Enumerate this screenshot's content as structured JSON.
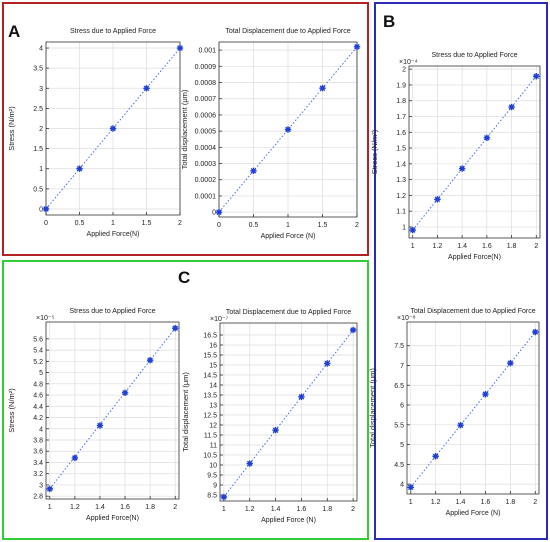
{
  "panels": [
    {
      "letter": "A",
      "color": "#b22222"
    },
    {
      "letter": "B",
      "color": "#2b2bb8"
    },
    {
      "letter": "C",
      "color": "#33cc33"
    }
  ],
  "style": {
    "marker_color": "#1f3fd6",
    "line_color": "#3f6fe0",
    "grid_color": "#dddddd"
  },
  "chart_data": [
    {
      "id": "a-stress",
      "type": "scatter",
      "title": "Stress due to Applied Force",
      "xlabel": "Applied Force(N)",
      "ylabel": "Stress (N/m²)",
      "multiplier": "",
      "xlim": [
        0,
        2
      ],
      "ylim": [
        -0.15,
        4.15
      ],
      "xticks": [
        "0",
        "0.5",
        "1",
        "1.5",
        "2"
      ],
      "xtick_values": [
        0,
        0.5,
        1,
        1.5,
        2
      ],
      "yticks": [
        "0",
        "0.5",
        "1",
        "1.5",
        "2",
        "2.5",
        "3",
        "3.5",
        "4"
      ],
      "ytick_values": [
        0,
        0.5,
        1,
        1.5,
        2,
        2.5,
        3,
        3.5,
        4
      ],
      "x": [
        0,
        0.5,
        1,
        1.5,
        2
      ],
      "y": [
        0,
        1,
        2,
        3,
        4
      ],
      "fit": "dotted"
    },
    {
      "id": "a-disp",
      "type": "scatter",
      "title": "Total Displacement due to Applied Force",
      "xlabel": "Applied Force (N)",
      "ylabel": "Total displacement (μm)",
      "multiplier": "",
      "xlim": [
        0,
        2
      ],
      "ylim": [
        -3e-05,
        0.00105
      ],
      "xticks": [
        "0",
        "0.5",
        "1",
        "1.5",
        "2"
      ],
      "xtick_values": [
        0,
        0.5,
        1,
        1.5,
        2
      ],
      "yticks": [
        "0",
        "0.0001",
        "0.0002",
        "0.0003",
        "0.0004",
        "0.0005",
        "0.0006",
        "0.0007",
        "0.0008",
        "0.0009",
        "0.001"
      ],
      "ytick_values": [
        0,
        0.0001,
        0.0002,
        0.0003,
        0.0004,
        0.0005,
        0.0006,
        0.0007,
        0.0008,
        0.0009,
        0.001
      ],
      "x": [
        0,
        0.5,
        1,
        1.5,
        2
      ],
      "y": [
        0,
        0.000255,
        0.00051,
        0.000765,
        0.00102
      ],
      "fit": "dotted"
    },
    {
      "id": "b-stress",
      "type": "scatter",
      "title": "Stress due to Applied Force",
      "xlabel": "Applied Force(N)",
      "ylabel": "Stress (N/m²)",
      "multiplier": "×10⁻⁴",
      "xlim": [
        0.97,
        2.03
      ],
      "ylim": [
        0.93,
        2.02
      ],
      "xticks": [
        "1",
        "1.2",
        "1.4",
        "1.6",
        "1.8",
        "2"
      ],
      "xtick_values": [
        1,
        1.2,
        1.4,
        1.6,
        1.8,
        2
      ],
      "yticks": [
        "1",
        "1.1",
        "1.2",
        "1.3",
        "1.4",
        "1.5",
        "1.6",
        "1.7",
        "1.8",
        "1.9",
        "2"
      ],
      "ytick_values": [
        1,
        1.1,
        1.2,
        1.3,
        1.4,
        1.5,
        1.6,
        1.7,
        1.8,
        1.9,
        2
      ],
      "x": [
        1,
        1.2,
        1.4,
        1.6,
        1.8,
        2
      ],
      "y": [
        0.98,
        1.175,
        1.37,
        1.565,
        1.76,
        1.955
      ],
      "fit": "dotted"
    },
    {
      "id": "b-disp",
      "type": "scatter",
      "title": "Total Displacement due to Applied Force",
      "xlabel": "Applied Force (N)",
      "ylabel": "Total displacement (μm)",
      "multiplier": "×10⁻⁸",
      "xlim": [
        0.97,
        2.03
      ],
      "ylim": [
        3.75,
        8.1
      ],
      "xticks": [
        "1",
        "1.2",
        "1.4",
        "1.6",
        "1.8",
        "2"
      ],
      "xtick_values": [
        1,
        1.2,
        1.4,
        1.6,
        1.8,
        2
      ],
      "yticks": [
        "4",
        "4.5",
        "5",
        "5.5",
        "6",
        "6.5",
        "7",
        "7.5"
      ],
      "ytick_values": [
        4,
        4.5,
        5,
        5.5,
        6,
        6.5,
        7,
        7.5
      ],
      "x": [
        1,
        1.2,
        1.4,
        1.6,
        1.8,
        2
      ],
      "y": [
        3.92,
        4.705,
        5.49,
        6.275,
        7.06,
        7.845
      ],
      "fit": "dotted"
    },
    {
      "id": "c-stress",
      "type": "scatter",
      "title": "Stress due to Applied Force",
      "xlabel": "Applied Force(N)",
      "ylabel": "Stress (N/m²)",
      "multiplier": "×10⁻⁵",
      "xlim": [
        0.97,
        2.03
      ],
      "ylim": [
        2.75,
        5.9
      ],
      "xticks": [
        "1",
        "1.2",
        "1.4",
        "1.6",
        "1.8",
        "2"
      ],
      "xtick_values": [
        1,
        1.2,
        1.4,
        1.6,
        1.8,
        2
      ],
      "yticks": [
        "2.8",
        "3",
        "3.2",
        "3.4",
        "3.6",
        "3.8",
        "4",
        "4.2",
        "4.4",
        "4.6",
        "4.8",
        "5",
        "5.2",
        "5.4",
        "5.6"
      ],
      "ytick_values": [
        2.8,
        3,
        3.2,
        3.4,
        3.6,
        3.8,
        4,
        4.2,
        4.4,
        4.6,
        4.8,
        5,
        5.2,
        5.4,
        5.6
      ],
      "x": [
        1,
        1.2,
        1.4,
        1.6,
        1.8,
        2
      ],
      "y": [
        2.93,
        3.48,
        4.06,
        4.64,
        5.22,
        5.79
      ],
      "fit": "dotted"
    },
    {
      "id": "c-disp",
      "type": "scatter",
      "title": "Total Displacement due to Applied Force",
      "xlabel": "Applied Force (N)",
      "ylabel": "Total displacement (μm)",
      "multiplier": "×10⁻⁷",
      "xlim": [
        0.97,
        2.03
      ],
      "ylim": [
        8.2,
        17.1
      ],
      "xticks": [
        "1",
        "1.2",
        "1.4",
        "1.6",
        "1.8",
        "2"
      ],
      "xtick_values": [
        1,
        1.2,
        1.4,
        1.6,
        1.8,
        2
      ],
      "yticks": [
        "8.5",
        "9",
        "9.5",
        "10",
        "10.5",
        "11",
        "11.5",
        "12",
        "12.5",
        "13",
        "13.5",
        "14",
        "14.5",
        "15",
        "15.5",
        "16",
        "16.5"
      ],
      "ytick_values": [
        8.5,
        9,
        9.5,
        10,
        10.5,
        11,
        11.5,
        12,
        12.5,
        13,
        13.5,
        14,
        14.5,
        15,
        15.5,
        16,
        16.5
      ],
      "x": [
        1,
        1.2,
        1.4,
        1.6,
        1.8,
        2
      ],
      "y": [
        8.4,
        10.07,
        11.74,
        13.41,
        15.08,
        16.75
      ],
      "fit": "dotted"
    }
  ]
}
